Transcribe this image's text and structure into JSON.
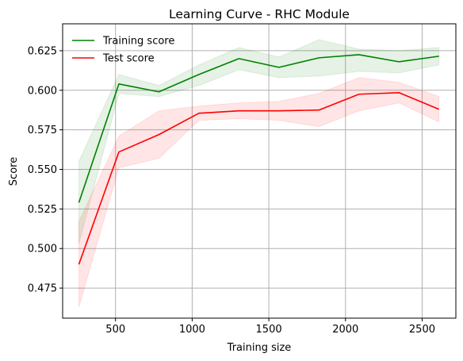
{
  "chart_data": {
    "type": "line",
    "title": "Learning Curve - RHC Module",
    "xlabel": "Training size",
    "ylabel": "Score",
    "xlim": [
      155,
      2720
    ],
    "ylim": [
      0.456,
      0.642
    ],
    "x_ticks": [
      500,
      1000,
      1500,
      2000,
      2500
    ],
    "x_tick_labels": [
      "500",
      "1000",
      "1500",
      "2000",
      "2500"
    ],
    "y_ticks": [
      0.475,
      0.5,
      0.525,
      0.55,
      0.575,
      0.6,
      0.625
    ],
    "y_tick_labels": [
      "0.475",
      "0.500",
      "0.525",
      "0.550",
      "0.575",
      "0.600",
      "0.625"
    ],
    "grid": true,
    "legend_position": "top-left",
    "x": [
      261,
      522,
      783,
      1044,
      1305,
      1566,
      1827,
      2088,
      2349,
      2610
    ],
    "series": [
      {
        "name": "Training score",
        "color": "#008000",
        "band_color": "#008000",
        "values": [
          0.529,
          0.604,
          0.599,
          0.61,
          0.62,
          0.6145,
          0.6205,
          0.6225,
          0.618,
          0.6215
        ],
        "lower": [
          0.503,
          0.598,
          0.596,
          0.603,
          0.613,
          0.608,
          0.609,
          0.612,
          0.611,
          0.616
        ],
        "upper": [
          0.555,
          0.61,
          0.603,
          0.616,
          0.627,
          0.621,
          0.632,
          0.626,
          0.625,
          0.627
        ]
      },
      {
        "name": "Test score",
        "color": "#ff0000",
        "band_color": "#ff0000",
        "values": [
          0.49,
          0.561,
          0.572,
          0.5855,
          0.587,
          0.587,
          0.5875,
          0.5975,
          0.5985,
          0.588
        ],
        "lower": [
          0.463,
          0.551,
          0.557,
          0.581,
          0.582,
          0.581,
          0.577,
          0.587,
          0.592,
          0.58
        ],
        "upper": [
          0.517,
          0.571,
          0.587,
          0.59,
          0.592,
          0.593,
          0.598,
          0.608,
          0.605,
          0.596
        ]
      }
    ]
  }
}
